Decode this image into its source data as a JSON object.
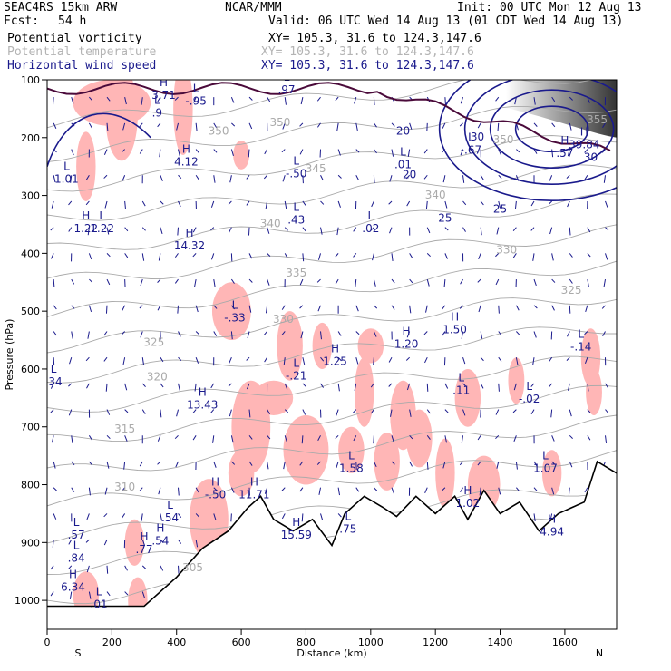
{
  "header": {
    "model": "SEAC4RS 15km ARW",
    "org": "NCAR/MMM",
    "init": "Init: 00 UTC Mon 12 Aug 13",
    "fcst_label": "Fcst:",
    "fcst_value": "54 h",
    "valid": "Valid: 06 UTC Wed 14 Aug 13 (01 CDT Wed 14 Aug 13)",
    "fields": [
      {
        "name": "Potential vorticity",
        "xy": "XY= 105.3, 31.6 to 124.3,147.6",
        "color": "#000000"
      },
      {
        "name": "Potential temperature",
        "xy": "XY= 105.3, 31.6 to 124.3,147.6",
        "color": "#b4b4b4"
      },
      {
        "name": "Horizontal wind speed",
        "xy": "XY= 105.3, 31.6 to 124.3,147.6",
        "color": "#1a1a8c"
      }
    ]
  },
  "chart_data": {
    "type": "contour",
    "xlabel": "Distance (km)",
    "ylabel": "Pressure (hPa)",
    "x_ticks": [
      0,
      200,
      400,
      600,
      800,
      1000,
      1200,
      1400,
      1600
    ],
    "y_ticks": [
      100,
      200,
      300,
      400,
      500,
      600,
      700,
      800,
      900,
      1000
    ],
    "xlim": [
      0,
      1760
    ],
    "ylim": [
      1050,
      100
    ],
    "left_end_label": "S",
    "right_end_label": "N",
    "colors": {
      "pv_positive_shading": "#ffb6b6",
      "pv_contour": "#4a0a3a",
      "theta": "#aaaaaa",
      "wind": "#1a1a8c",
      "terrain": "#000000"
    },
    "theta_contours": [
      {
        "label": "350",
        "x": 530,
        "p": 195
      },
      {
        "label": "345",
        "x": 830,
        "p": 260
      },
      {
        "label": "340",
        "x": 690,
        "p": 355
      },
      {
        "label": "340",
        "x": 1200,
        "p": 305
      },
      {
        "label": "335",
        "x": 770,
        "p": 440
      },
      {
        "label": "330",
        "x": 730,
        "p": 520
      },
      {
        "label": "330",
        "x": 1420,
        "p": 400
      },
      {
        "label": "325",
        "x": 330,
        "p": 560
      },
      {
        "label": "325",
        "x": 1620,
        "p": 470
      },
      {
        "label": "320",
        "x": 340,
        "p": 620
      },
      {
        "label": "315",
        "x": 240,
        "p": 710
      },
      {
        "label": "310",
        "x": 240,
        "p": 810
      },
      {
        "label": "305",
        "x": 450,
        "p": 950
      },
      {
        "label": "355",
        "x": 1700,
        "p": 175
      },
      {
        "label": "350",
        "x": 1410,
        "p": 210
      },
      {
        "label": "350",
        "x": 720,
        "p": 180
      }
    ],
    "wind_speed_contours": [
      {
        "label": "20",
        "x": 1100,
        "p": 195
      },
      {
        "label": "20",
        "x": 1120,
        "p": 270
      },
      {
        "label": "25",
        "x": 1230,
        "p": 345
      },
      {
        "label": "25",
        "x": 1400,
        "p": 330
      },
      {
        "label": "30",
        "x": 1330,
        "p": 205
      },
      {
        "label": "30",
        "x": 1680,
        "p": 240
      }
    ],
    "extrema": [
      {
        "type": "H",
        "value": "3.71",
        "x": 360,
        "p": 130
      },
      {
        "type": "L",
        "value": ".9",
        "x": 340,
        "p": 160
      },
      {
        "type": "L",
        "value": "-.95",
        "x": 460,
        "p": 140
      },
      {
        "type": "L",
        "value": ".97",
        "x": 740,
        "p": 120
      },
      {
        "type": "H",
        "value": "4.12",
        "x": 430,
        "p": 245
      },
      {
        "type": "L",
        "value": "1.01",
        "x": 60,
        "p": 275
      },
      {
        "type": "L",
        "value": "1.22",
        "x": 170,
        "p": 360
      },
      {
        "type": "H",
        "value": "1.22",
        "x": 120,
        "p": 360
      },
      {
        "type": "H",
        "value": "14.32",
        "x": 440,
        "p": 390
      },
      {
        "type": "L",
        "value": "-.50",
        "x": 770,
        "p": 265
      },
      {
        "type": "L",
        "value": ".43",
        "x": 770,
        "p": 345
      },
      {
        "type": "L",
        "value": ".02",
        "x": 1000,
        "p": 360
      },
      {
        "type": "L",
        "value": "-.67",
        "x": 1310,
        "p": 225
      },
      {
        "type": "L",
        "value": ".01",
        "x": 1100,
        "p": 250
      },
      {
        "type": "H",
        "value": "39.84",
        "x": 1660,
        "p": 215
      },
      {
        "type": "H",
        "value": ".57",
        "x": 1600,
        "p": 230
      },
      {
        "type": "L",
        "value": "-.33",
        "x": 580,
        "p": 515
      },
      {
        "type": "L",
        "value": "-.21",
        "x": 770,
        "p": 615
      },
      {
        "type": "H",
        "value": "1.25",
        "x": 890,
        "p": 590
      },
      {
        "type": "H",
        "value": "1.20",
        "x": 1110,
        "p": 560
      },
      {
        "type": "H",
        "value": "1.50",
        "x": 1260,
        "p": 535
      },
      {
        "type": "L",
        "value": "-.14",
        "x": 1650,
        "p": 565
      },
      {
        "type": "L",
        "value": ".11",
        "x": 1280,
        "p": 640
      },
      {
        "type": "L",
        "value": "-.02",
        "x": 1490,
        "p": 655
      },
      {
        "type": "H",
        "value": "13.43",
        "x": 480,
        "p": 665
      },
      {
        "type": "L",
        "value": "1.58",
        "x": 940,
        "p": 775
      },
      {
        "type": "L",
        "value": "1.07",
        "x": 1540,
        "p": 775
      },
      {
        "type": "H",
        "value": "1.02",
        "x": 1300,
        "p": 835
      },
      {
        "type": "H",
        "value": "-.50",
        "x": 520,
        "p": 820
      },
      {
        "type": "H",
        "value": "11.71",
        "x": 640,
        "p": 820
      },
      {
        "type": "H",
        "value": "15.59",
        "x": 770,
        "p": 890
      },
      {
        "type": "L",
        "value": ".75",
        "x": 930,
        "p": 880
      },
      {
        "type": "H",
        "value": "4.94",
        "x": 1560,
        "p": 885
      },
      {
        "type": "L",
        "value": ".54",
        "x": 380,
        "p": 860
      },
      {
        "type": "H",
        "value": ".54",
        "x": 350,
        "p": 900
      },
      {
        "type": "H",
        "value": ".77",
        "x": 300,
        "p": 915
      },
      {
        "type": "L",
        "value": ".57",
        "x": 90,
        "p": 890
      },
      {
        "type": "L",
        "value": ".84",
        "x": 90,
        "p": 930
      },
      {
        "type": "H",
        "value": "6.34",
        "x": 80,
        "p": 980
      },
      {
        "type": "L",
        "value": ".01",
        "x": 160,
        "p": 1010
      },
      {
        "type": "L",
        "value": ".34",
        "x": 20,
        "p": 625
      }
    ],
    "terrain_pressure": [
      {
        "x": 0,
        "p": 1010
      },
      {
        "x": 300,
        "p": 1010
      },
      {
        "x": 400,
        "p": 960
      },
      {
        "x": 480,
        "p": 910
      },
      {
        "x": 560,
        "p": 880
      },
      {
        "x": 620,
        "p": 840
      },
      {
        "x": 660,
        "p": 820
      },
      {
        "x": 700,
        "p": 860
      },
      {
        "x": 760,
        "p": 880
      },
      {
        "x": 820,
        "p": 860
      },
      {
        "x": 880,
        "p": 905
      },
      {
        "x": 920,
        "p": 850
      },
      {
        "x": 980,
        "p": 820
      },
      {
        "x": 1040,
        "p": 840
      },
      {
        "x": 1080,
        "p": 855
      },
      {
        "x": 1140,
        "p": 820
      },
      {
        "x": 1200,
        "p": 850
      },
      {
        "x": 1260,
        "p": 820
      },
      {
        "x": 1300,
        "p": 860
      },
      {
        "x": 1350,
        "p": 810
      },
      {
        "x": 1400,
        "p": 850
      },
      {
        "x": 1460,
        "p": 830
      },
      {
        "x": 1520,
        "p": 880
      },
      {
        "x": 1580,
        "p": 850
      },
      {
        "x": 1620,
        "p": 840
      },
      {
        "x": 1660,
        "p": 830
      },
      {
        "x": 1700,
        "p": 760
      },
      {
        "x": 1760,
        "p": 780
      }
    ]
  }
}
